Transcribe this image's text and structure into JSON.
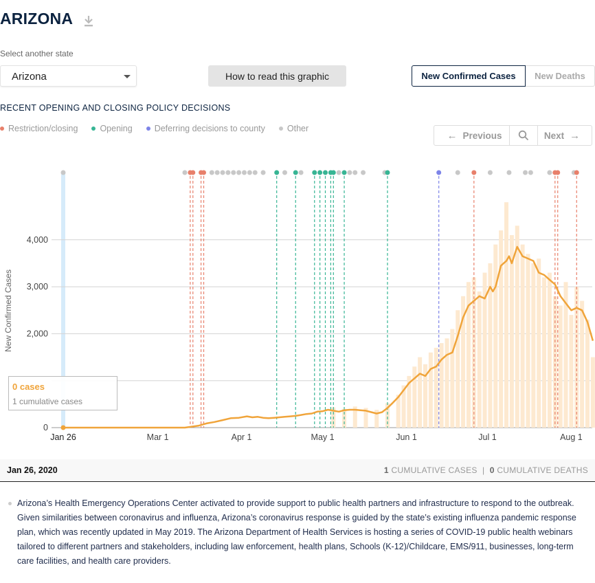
{
  "header": {
    "title": "ARIZONA",
    "download_icon": "download-icon"
  },
  "state_select": {
    "label": "Select another state",
    "value": "Arizona"
  },
  "howto_label": "How to read this graphic",
  "toggle": {
    "cases": "New Confirmed Cases",
    "deaths": "New Deaths"
  },
  "policy": {
    "heading": "RECENT OPENING AND CLOSING POLICY DECISIONS",
    "legend": [
      {
        "label": "Restriction/closing",
        "color": "#e8806b"
      },
      {
        "label": "Opening",
        "color": "#37b594"
      },
      {
        "label": "Deferring decisions to county",
        "color": "#7d84e8"
      },
      {
        "label": "Other",
        "color": "#c8c8c8"
      }
    ]
  },
  "nav": {
    "previous": "Previous",
    "next": "Next",
    "search_icon": "search-icon"
  },
  "tooltip": {
    "cases": "0 cases",
    "cumulative": "1 cumulative cases"
  },
  "selected": {
    "date": "Jan 26, 2020",
    "cum_cases_value": "1",
    "cum_cases_label": "CUMULATIVE CASES",
    "separator": "|",
    "cum_deaths_value": "0",
    "cum_deaths_label": "CUMULATIVE DEATHS"
  },
  "description": "Arizona’s Health Emergency Operations Center activated to provide support to public health partners and infrastructure to respond to the outbreak. Given similarities between coronavirus and influenza, Arizona’s coronavirus response is guided by the state’s existing influenza pandemic response plan, which was recently updated in May 2019. The Arizona Department of Health Services is hosting a series of COVID-19 public health webinars tailored to different partners and stakeholders, including law enforcement, health plans, Schools (K-12)/Childcare, EMS/911, businesses, long-term care facilities, and health care providers.",
  "chart_data": {
    "type": "line",
    "ylabel": "New Confirmed Cases",
    "x_start": "Jan 26",
    "x_ticks": [
      "Jan 26",
      "Mar 1",
      "Apr 1",
      "May 1",
      "Jun 1",
      "Jul 1",
      "Aug 1"
    ],
    "x_tick_days": [
      0,
      35,
      66,
      96,
      127,
      157,
      188
    ],
    "y_ticks": [
      0,
      1000,
      2000,
      3000,
      4000
    ],
    "y_tick_labels": [
      "0",
      "",
      "2,000",
      "3,000",
      "4,000"
    ],
    "ylim": [
      0,
      4000
    ],
    "x_range_days": [
      0,
      196
    ],
    "grid": true,
    "highlight_day": 0,
    "series": [
      {
        "style": "7-day-average-line",
        "color": "#f0a43a",
        "x_days": [
          0,
          45,
          50,
          53,
          56,
          59,
          62,
          65,
          68,
          70,
          72,
          74,
          76,
          78,
          80,
          82,
          84,
          86,
          88,
          90,
          92,
          94,
          96,
          98,
          100,
          102,
          104,
          106,
          108,
          110,
          112,
          114,
          116,
          118,
          120,
          122,
          124,
          126,
          128,
          130,
          132,
          134,
          136,
          138,
          140,
          142,
          144,
          146,
          148,
          150,
          152,
          154,
          156,
          158,
          159,
          160,
          162,
          164,
          165,
          166,
          168,
          170,
          172,
          174,
          176,
          178,
          180,
          182,
          184,
          186,
          188,
          190,
          192,
          194,
          196
        ],
        "values": [
          0,
          0,
          40,
          90,
          120,
          160,
          200,
          210,
          240,
          220,
          230,
          210,
          200,
          210,
          220,
          230,
          240,
          250,
          270,
          290,
          300,
          340,
          350,
          380,
          360,
          340,
          370,
          380,
          380,
          370,
          360,
          330,
          300,
          330,
          420,
          530,
          650,
          800,
          950,
          1050,
          1150,
          1100,
          1250,
          1300,
          1450,
          1550,
          1600,
          1950,
          2350,
          2600,
          2700,
          2800,
          2750,
          3000,
          2900,
          3000,
          3450,
          3550,
          3650,
          3500,
          3850,
          3650,
          3600,
          3550,
          3300,
          3250,
          3150,
          3050,
          2800,
          2650,
          2500,
          2550,
          2500,
          2250,
          1850
        ]
      },
      {
        "style": "daily-bars",
        "color": "#fde9d0",
        "x_days": [
          100,
          104,
          108,
          112,
          116,
          120,
          124,
          126,
          128,
          130,
          132,
          134,
          136,
          138,
          140,
          142,
          144,
          146,
          148,
          150,
          152,
          154,
          156,
          158,
          160,
          162,
          164,
          166,
          168,
          170,
          172,
          174,
          176,
          178,
          180,
          182,
          184,
          186,
          188,
          190,
          192,
          194,
          196
        ],
        "values": [
          430,
          400,
          450,
          420,
          380,
          520,
          700,
          900,
          1100,
          1300,
          1500,
          1350,
          1600,
          1700,
          1800,
          1900,
          2100,
          2500,
          2800,
          3100,
          3200,
          2900,
          3300,
          3500,
          3900,
          4200,
          4800,
          4100,
          4300,
          3900,
          3700,
          3500,
          3600,
          3200,
          3300,
          2800,
          2600,
          3100,
          2400,
          3000,
          2700,
          2300,
          1500
        ]
      }
    ],
    "policy_events": [
      {
        "day": 0,
        "type": "Other",
        "line": true
      },
      {
        "day": 45,
        "type": "Other",
        "line": false
      },
      {
        "day": 47,
        "type": "Restriction/closing",
        "line": true
      },
      {
        "day": 48,
        "type": "Restriction/closing",
        "line": true
      },
      {
        "day": 51,
        "type": "Restriction/closing",
        "line": true
      },
      {
        "day": 52,
        "type": "Restriction/closing",
        "line": true
      },
      {
        "day": 55,
        "type": "Other",
        "line": false
      },
      {
        "day": 57,
        "type": "Other",
        "line": false
      },
      {
        "day": 59,
        "type": "Other",
        "line": false
      },
      {
        "day": 61,
        "type": "Other",
        "line": false
      },
      {
        "day": 63,
        "type": "Other",
        "line": false
      },
      {
        "day": 65,
        "type": "Other",
        "line": false
      },
      {
        "day": 67,
        "type": "Other",
        "line": false
      },
      {
        "day": 69,
        "type": "Other",
        "line": false
      },
      {
        "day": 71,
        "type": "Other",
        "line": false
      },
      {
        "day": 74,
        "type": "Other",
        "line": false
      },
      {
        "day": 79,
        "type": "Opening",
        "line": true
      },
      {
        "day": 82,
        "type": "Other",
        "line": false
      },
      {
        "day": 86,
        "type": "Opening",
        "line": true
      },
      {
        "day": 88,
        "type": "Other",
        "line": false
      },
      {
        "day": 93,
        "type": "Opening",
        "line": true
      },
      {
        "day": 95,
        "type": "Opening",
        "line": true
      },
      {
        "day": 97,
        "type": "Opening",
        "line": true
      },
      {
        "day": 99,
        "type": "Opening",
        "line": true
      },
      {
        "day": 100,
        "type": "Opening",
        "line": true
      },
      {
        "day": 102,
        "type": "Other",
        "line": false
      },
      {
        "day": 104,
        "type": "Opening",
        "line": true
      },
      {
        "day": 106,
        "type": "Other",
        "line": false
      },
      {
        "day": 108,
        "type": "Other",
        "line": false
      },
      {
        "day": 111,
        "type": "Other",
        "line": false
      },
      {
        "day": 119,
        "type": "Other",
        "line": false
      },
      {
        "day": 120,
        "type": "Opening",
        "line": true
      },
      {
        "day": 139,
        "type": "Deferring decisions to county",
        "line": true
      },
      {
        "day": 146,
        "type": "Other",
        "line": false
      },
      {
        "day": 152,
        "type": "Restriction/closing",
        "line": true
      },
      {
        "day": 158,
        "type": "Other",
        "line": false
      },
      {
        "day": 165,
        "type": "Other",
        "line": false
      },
      {
        "day": 171,
        "type": "Other",
        "line": false
      },
      {
        "day": 173,
        "type": "Other",
        "line": false
      },
      {
        "day": 180,
        "type": "Other",
        "line": false
      },
      {
        "day": 182,
        "type": "Restriction/closing",
        "line": true
      },
      {
        "day": 183,
        "type": "Restriction/closing",
        "line": true
      },
      {
        "day": 189,
        "type": "Other",
        "line": false
      },
      {
        "day": 190,
        "type": "Restriction/closing",
        "line": true
      }
    ]
  }
}
